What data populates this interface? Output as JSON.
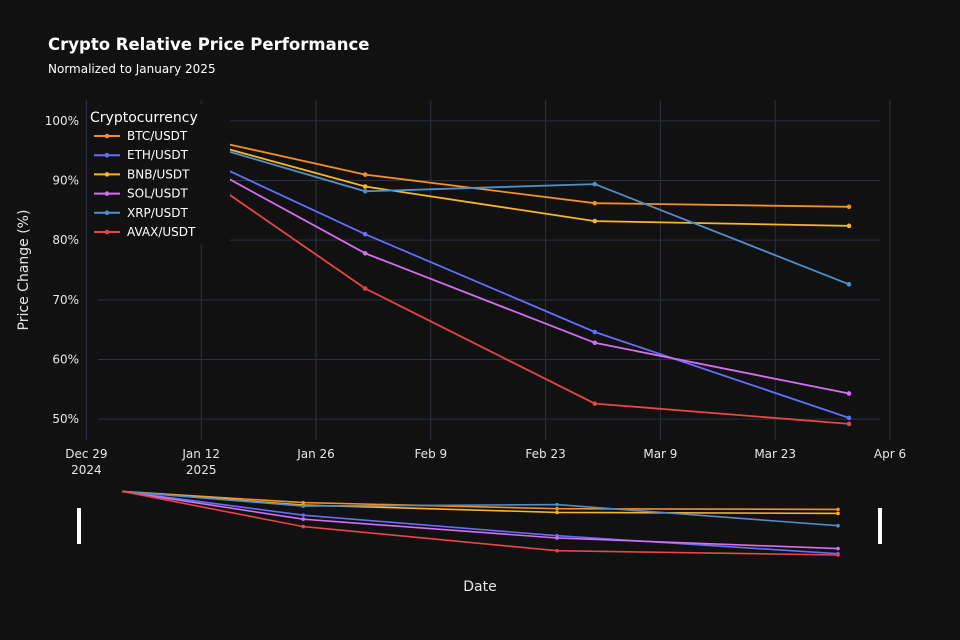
{
  "chart_data": {
    "type": "line",
    "title": "Crypto Relative Price Performance",
    "subtitle": "Normalized to January 2025",
    "xlabel": "Date",
    "ylabel": "Price Change (%)",
    "x": [
      "2025-01-12",
      "2025-02-01",
      "2025-03-01",
      "2025-04-01"
    ],
    "xlim": [
      "2024-12-27",
      "2025-04-06"
    ],
    "ylim": [
      46.5,
      103.5
    ],
    "x_ticks": [
      {
        "date": "2024-12-29",
        "label": "Dec 29",
        "sub": "2024"
      },
      {
        "date": "2025-01-12",
        "label": "Jan 12",
        "sub": "2025"
      },
      {
        "date": "2025-01-26",
        "label": "Jan 26",
        "sub": ""
      },
      {
        "date": "2025-02-09",
        "label": "Feb 9",
        "sub": ""
      },
      {
        "date": "2025-02-23",
        "label": "Feb 23",
        "sub": ""
      },
      {
        "date": "2025-03-09",
        "label": "Mar 9",
        "sub": ""
      },
      {
        "date": "2025-03-23",
        "label": "Mar 23",
        "sub": ""
      },
      {
        "date": "2025-04-06",
        "label": "Apr 6",
        "sub": ""
      }
    ],
    "y_ticks": [
      {
        "value": 50,
        "label": "50%"
      },
      {
        "value": 60,
        "label": "60%"
      },
      {
        "value": 70,
        "label": "70%"
      },
      {
        "value": 80,
        "label": "80%"
      },
      {
        "value": 90,
        "label": "90%"
      },
      {
        "value": 100,
        "label": "100%"
      }
    ],
    "grid": true,
    "legend": {
      "title": "Cryptocurrency",
      "position": "top-left"
    },
    "rangeslider": true,
    "series": [
      {
        "name": "BTC/USDT",
        "color": "#f28e2b",
        "values": [
          97.1,
          91.0,
          86.2,
          85.6
        ]
      },
      {
        "name": "ETH/USDT",
        "color": "#636efa",
        "values": [
          93.8,
          81.0,
          64.6,
          50.2
        ]
      },
      {
        "name": "BNB/USDT",
        "color": "#fbb42b",
        "values": [
          96.5,
          89.0,
          83.2,
          82.4
        ]
      },
      {
        "name": "SOL/USDT",
        "color": "#d36ff0",
        "values": [
          92.8,
          77.8,
          62.8,
          54.3
        ]
      },
      {
        "name": "XRP/USDT",
        "color": "#4e8fc7",
        "values": [
          96.2,
          88.2,
          89.4,
          72.6
        ]
      },
      {
        "name": "AVAX/USDT",
        "color": "#e84545",
        "values": [
          90.9,
          71.9,
          52.6,
          49.2
        ]
      }
    ]
  }
}
